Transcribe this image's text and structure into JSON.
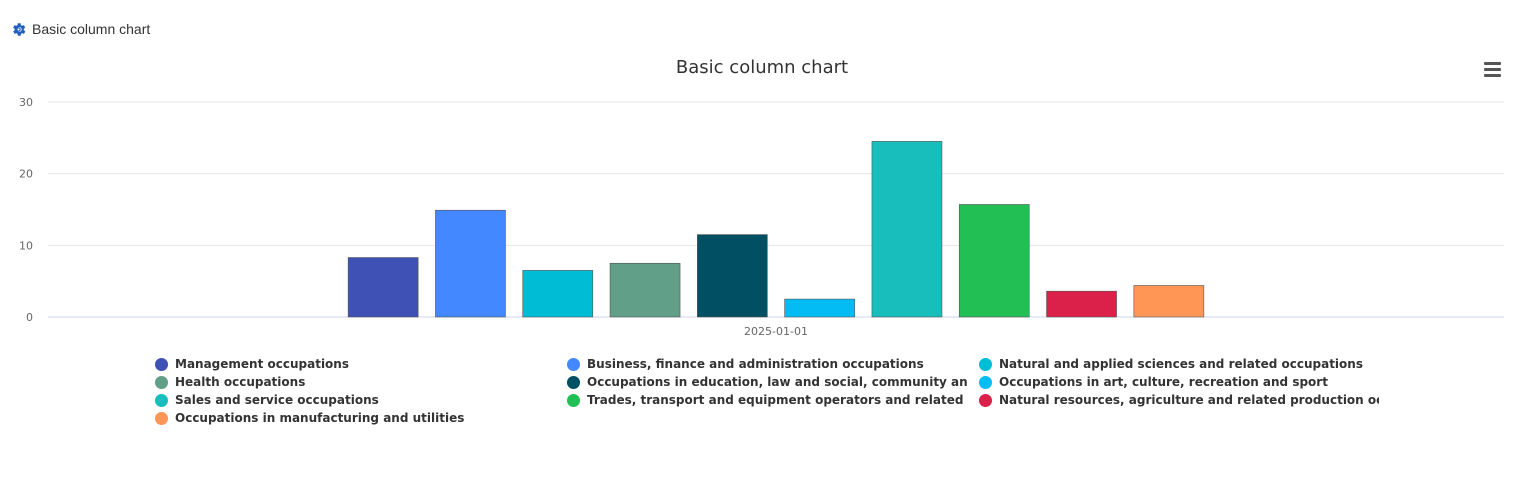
{
  "header": {
    "title": "Basic column chart",
    "icon": "gear-icon",
    "icon_color": "#1f5fbf"
  },
  "menu": {
    "icon": "hamburger-menu-icon"
  },
  "chart_data": {
    "type": "bar",
    "title": "Basic column chart",
    "xlabel": "",
    "ylabel": "",
    "categories": [
      "2025-01-01"
    ],
    "ylim": [
      0,
      30
    ],
    "yticks": [
      0,
      10,
      20,
      30
    ],
    "grid": true,
    "legend_position": "bottom",
    "series": [
      {
        "name": "Management occupations",
        "values": [
          8.3
        ],
        "color": "#3f51b5"
      },
      {
        "name": "Business, finance and administration occupations",
        "values": [
          14.9
        ],
        "color": "#4488ff"
      },
      {
        "name": "Natural and applied sciences and related occupations",
        "values": [
          6.5
        ],
        "color": "#00bcd4"
      },
      {
        "name": "Health occupations",
        "values": [
          7.5
        ],
        "color": "#619f88"
      },
      {
        "name": "Occupations in education, law and social, community and gove",
        "values": [
          11.5
        ],
        "color": "#014f63"
      },
      {
        "name": "Occupations in art, culture, recreation and sport",
        "values": [
          2.5
        ],
        "color": "#03bcf3"
      },
      {
        "name": "Sales and service occupations",
        "values": [
          24.5
        ],
        "color": "#17bebb"
      },
      {
        "name": "Trades, transport and equipment operators and related occupa",
        "values": [
          15.7
        ],
        "color": "#22bf55"
      },
      {
        "name": "Natural resources, agriculture and related production occupa",
        "values": [
          3.6
        ],
        "color": "#db2149"
      },
      {
        "name": "Occupations in manufacturing and utilities",
        "values": [
          4.4
        ],
        "color": "#ff9656"
      }
    ]
  }
}
